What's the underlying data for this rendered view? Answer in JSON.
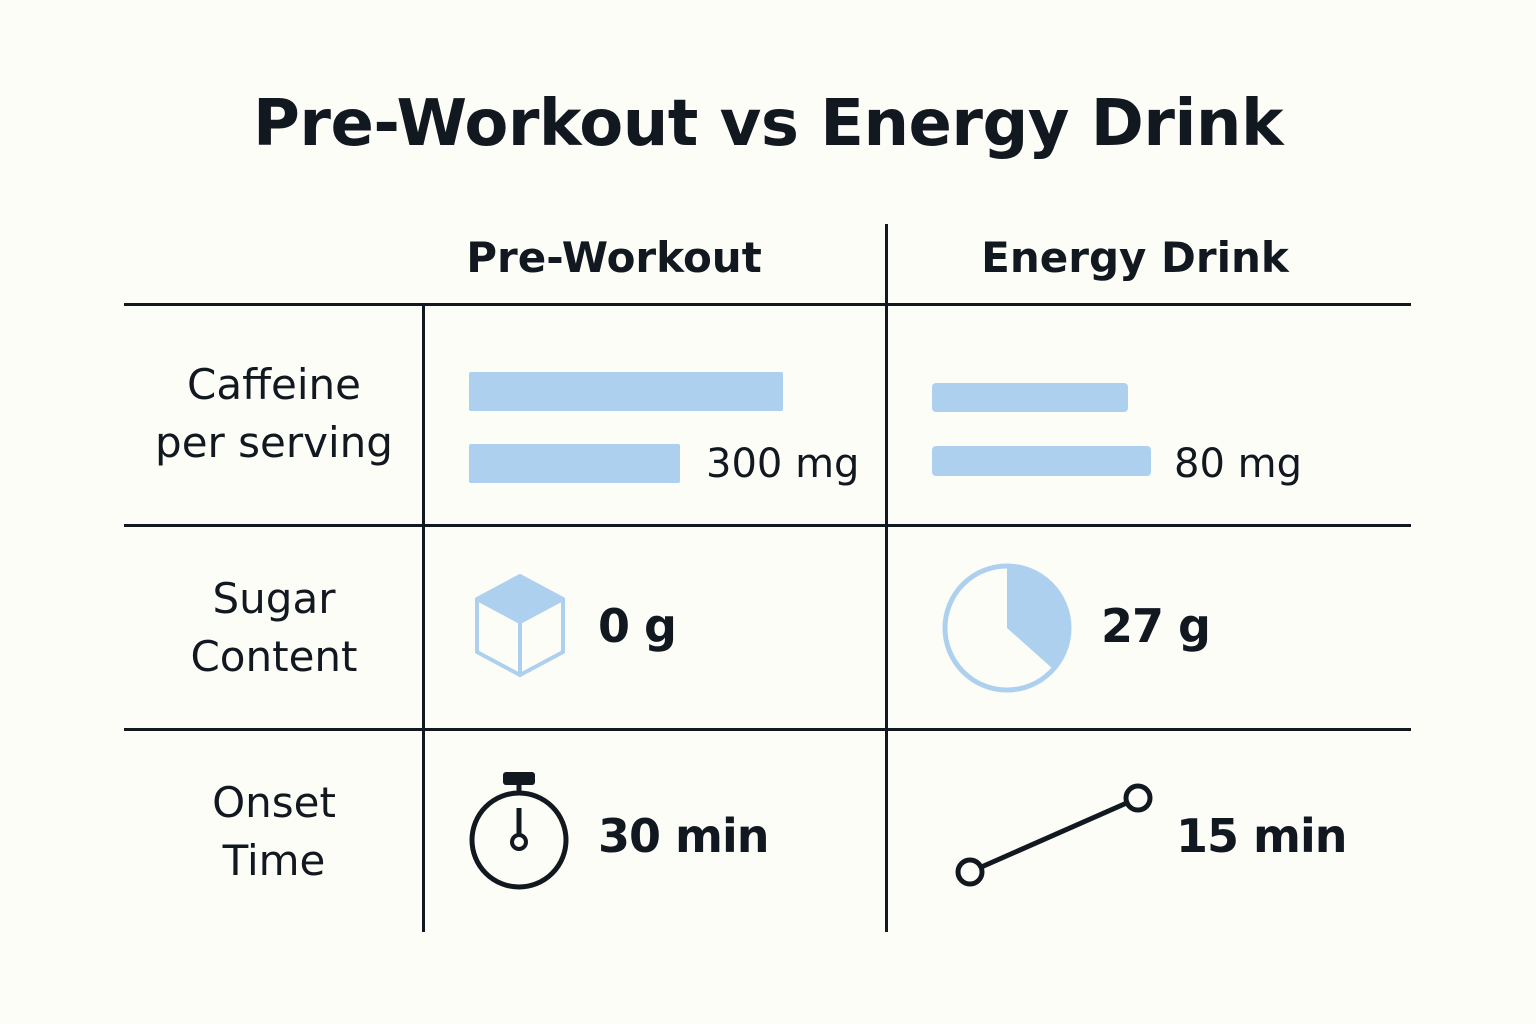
{
  "title": "Pre-Workout vs Energy Drink",
  "columns": {
    "pre_workout": "Pre-Workout",
    "energy_drink": "Energy Drink"
  },
  "rows": {
    "caffeine": {
      "label_line1": "Caffeine",
      "label_line2": "per serving",
      "pre_workout_value": "300 mg",
      "energy_drink_value": "80 mg"
    },
    "sugar": {
      "label_line1": "Sugar",
      "label_line2": "Content",
      "pre_workout_value": "0 g",
      "energy_drink_value": "27 g",
      "pre_workout_icon": "sugar-cube-icon",
      "energy_drink_icon": "pie-icon"
    },
    "onset": {
      "label_line1": "Onset",
      "label_line2": "Time",
      "pre_workout_value": "30 min",
      "energy_drink_value": "15 min",
      "pre_workout_icon": "stopwatch-icon",
      "energy_drink_icon": "line-segment-icon"
    }
  },
  "colors": {
    "accent": "#aed0ef",
    "ink": "#12181f",
    "background": "#fdfdf8"
  }
}
